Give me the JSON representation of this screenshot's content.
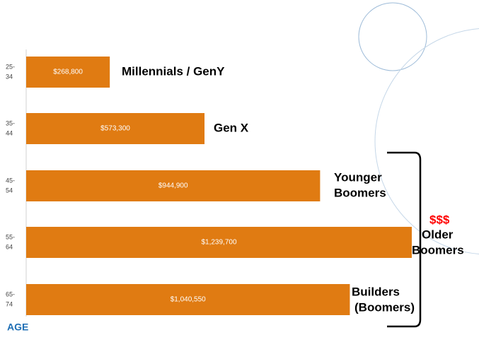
{
  "chart_data": {
    "type": "bar",
    "orientation": "horizontal",
    "categories": [
      [
        "25-",
        "34"
      ],
      [
        "35-",
        "44"
      ],
      [
        "45-",
        "54"
      ],
      [
        "55-",
        "64"
      ],
      [
        "65-",
        "74"
      ]
    ],
    "values": [
      268800,
      573300,
      944900,
      1239700,
      1040550
    ],
    "value_labels": [
      "$268,800",
      "$573,300",
      "$944,900",
      "$1,239,700",
      "$1,040,550"
    ],
    "color": "#e07b12",
    "bar_annotations": [
      [
        "Millennials / GenY"
      ],
      [
        "Gen X"
      ],
      [
        "Younger",
        "Boomers"
      ],
      [
        "Older",
        "Boomers"
      ],
      [
        "Builders",
        "(Boomers)"
      ]
    ],
    "bracket_annotation": "$$$",
    "bracket_color": "#ff0000",
    "y_label": "AGE"
  }
}
